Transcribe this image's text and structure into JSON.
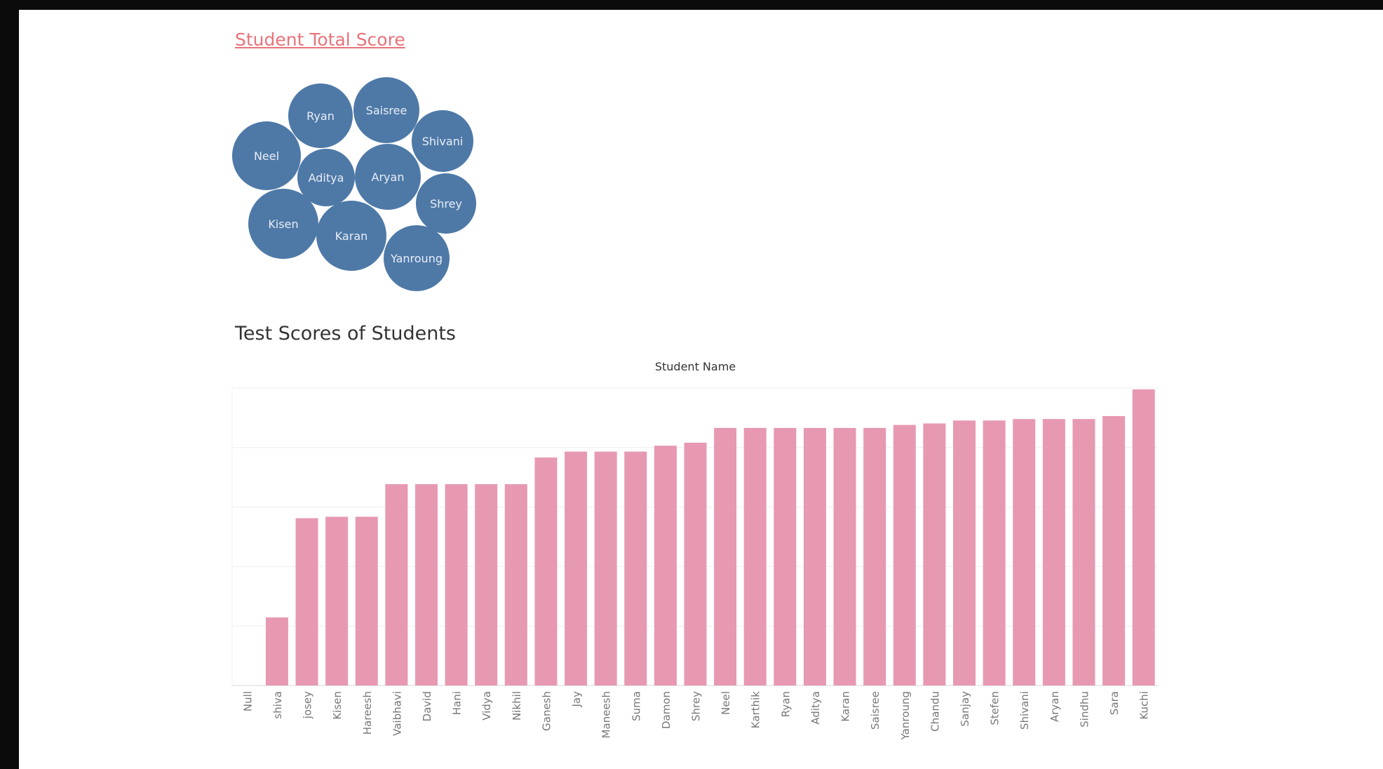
{
  "bubble_chart": {
    "title": "Student Total Score",
    "color": "#4e79a7",
    "label_color": "#e8eef6",
    "students": [
      "Ryan",
      "Saisree",
      "Neel",
      "Shivani",
      "Aditya",
      "Aryan",
      "Shrey",
      "Kisen",
      "Karan",
      "Yanroung"
    ]
  },
  "bar_chart": {
    "title": "Test Scores of Students"
  },
  "chart_data": {
    "type": "bar",
    "xlabel": "Student Name",
    "bar_color": "#e799b1",
    "ylim": [
      0,
      100
    ],
    "categories": [
      "Null",
      "shiva",
      "josey",
      "Kisen",
      "Hareesh",
      "Vaibhavi",
      "David",
      "Hani",
      "Vidya",
      "Nikhil",
      "Ganesh",
      "Jay",
      "Maneesh",
      "Suma",
      "Damon",
      "Shrey",
      "Neel",
      "Karthik",
      "Ryan",
      "Aditya",
      "Karan",
      "Saisree",
      "Yanroung",
      "Chandu",
      "Sanjay",
      "Stefen",
      "Shivani",
      "Aryan",
      "Sindhu",
      "Sara",
      "Kuchi"
    ],
    "values": [
      0,
      23,
      56.5,
      57,
      57,
      68,
      68,
      68,
      68,
      68,
      77,
      79,
      79,
      79,
      81,
      82,
      87,
      87,
      87,
      87,
      87,
      87,
      88,
      88.5,
      89.5,
      89.5,
      90,
      90,
      90,
      91,
      100
    ]
  }
}
